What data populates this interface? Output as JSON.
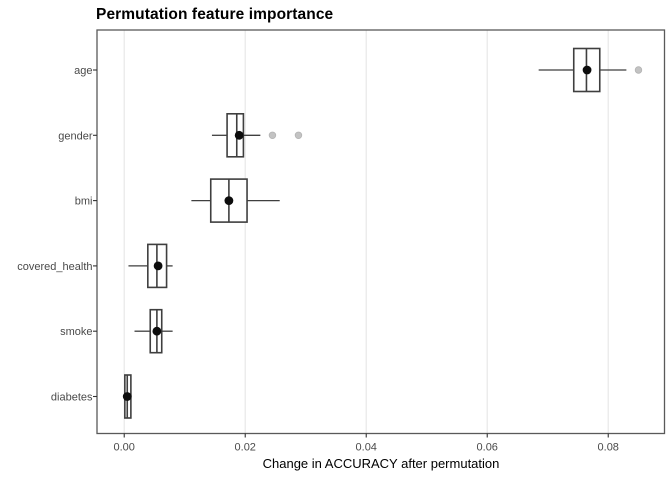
{
  "title": "Permutation feature importance",
  "chart_data": {
    "type": "boxplot",
    "orientation": "horizontal",
    "title": "Permutation feature importance",
    "xlabel": "Change in ACCURACY after permutation",
    "ylabel": "",
    "xlim": [
      -0.0045,
      0.0893
    ],
    "x_ticks": [
      0.0,
      0.02,
      0.04,
      0.06,
      0.08
    ],
    "x_tick_labels": [
      "0.00",
      "0.02",
      "0.04",
      "0.06",
      "0.08"
    ],
    "categories": [
      "age",
      "gender",
      "bmi",
      "covered_health",
      "smoke",
      "diabetes"
    ],
    "grid": "vertical major gridlines only",
    "legend": "none",
    "series": [
      {
        "name": "age",
        "whisker_low": 0.0685,
        "q1": 0.0743,
        "median": 0.0764,
        "q3": 0.0786,
        "whisker_high": 0.083,
        "point": 0.0765,
        "outliers": [
          0.085
        ]
      },
      {
        "name": "gender",
        "whisker_low": 0.0145,
        "q1": 0.017,
        "median": 0.0186,
        "q3": 0.0197,
        "whisker_high": 0.0225,
        "point": 0.019,
        "outliers": [
          0.0245,
          0.0288
        ]
      },
      {
        "name": "bmi",
        "whisker_low": 0.0111,
        "q1": 0.0143,
        "median": 0.0173,
        "q3": 0.0203,
        "whisker_high": 0.0257,
        "point": 0.0173,
        "outliers": []
      },
      {
        "name": "covered_health",
        "whisker_low": 0.0007,
        "q1": 0.0039,
        "median": 0.0054,
        "q3": 0.007,
        "whisker_high": 0.008,
        "point": 0.0056,
        "outliers": []
      },
      {
        "name": "smoke",
        "whisker_low": 0.0017,
        "q1": 0.0043,
        "median": 0.0054,
        "q3": 0.0062,
        "whisker_high": 0.008,
        "point": 0.0054,
        "outliers": []
      },
      {
        "name": "diabetes",
        "whisker_low": 0.0,
        "q1": 0.0001,
        "median": 0.0005,
        "q3": 0.0011,
        "whisker_high": 0.0011,
        "point": 0.0005,
        "outliers": []
      }
    ],
    "colors": {
      "background": "#ffffff",
      "panel_background": "#ffffff",
      "panel_border": "#595959",
      "gridline": "#e8e8e8",
      "box_stroke": "#3f3f3f",
      "box_fill": "#ffffff",
      "whisker": "#3f3f3f",
      "median_point": "#0d0d0d",
      "outlier": "#c3c3c3",
      "tick_mark": "#333333",
      "tick_text": "#4a4a4a",
      "axis_title_text": "#000000",
      "title_text": "#000000"
    }
  }
}
